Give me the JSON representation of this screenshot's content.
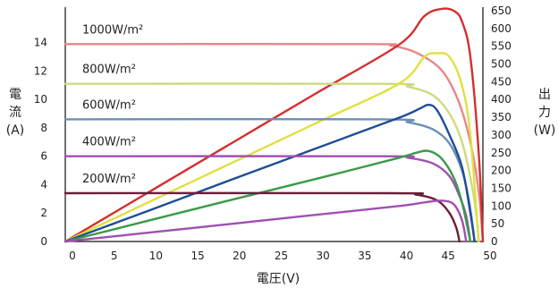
{
  "chart_data": {
    "type": "line",
    "xlabel": "電圧(V)",
    "ylabel_left": [
      "電",
      "流",
      "(A)"
    ],
    "ylabel_right": [
      "出",
      "力",
      "(W)"
    ],
    "x_ticks": [
      0,
      5,
      10,
      15,
      20,
      25,
      30,
      35,
      40,
      45,
      50
    ],
    "y_left_ticks": [
      0,
      2,
      4,
      6,
      8,
      10,
      12,
      14
    ],
    "y_right_ticks": [
      0,
      50,
      100,
      150,
      200,
      250,
      300,
      350,
      400,
      450,
      500,
      550,
      600,
      650
    ],
    "xlim": [
      0,
      50
    ],
    "ylim_left": [
      0,
      16.5
    ],
    "ylim_right": [
      0,
      660
    ],
    "grid": false,
    "series": [
      {
        "name": "1000W/m²",
        "current_color": "#e8868a",
        "power_color": "#d32f2f",
        "current": [
          [
            0,
            13.9
          ],
          [
            36,
            13.9
          ],
          [
            39,
            13.8
          ],
          [
            42,
            13.3
          ],
          [
            45,
            12.1
          ],
          [
            47,
            10.0
          ],
          [
            48.5,
            7.0
          ],
          [
            49.5,
            3.5
          ],
          [
            50,
            0
          ]
        ],
        "power": [
          [
            0,
            0
          ],
          [
            10,
            139
          ],
          [
            20,
            278
          ],
          [
            30,
            417
          ],
          [
            40,
            555
          ],
          [
            43,
            635
          ],
          [
            45,
            655
          ],
          [
            46.5,
            650
          ],
          [
            47.5,
            620
          ],
          [
            48.5,
            520
          ],
          [
            49.5,
            250
          ],
          [
            50,
            0
          ]
        ]
      },
      {
        "name": "800W/m²",
        "current_color": "#cbdc7e",
        "power_color": "#e0e040",
        "current": [
          [
            0,
            11.1
          ],
          [
            38,
            11.1
          ],
          [
            41,
            10.9
          ],
          [
            44,
            10.3
          ],
          [
            46,
            9.0
          ],
          [
            47.5,
            7.0
          ],
          [
            48.5,
            4.5
          ],
          [
            49.2,
            2.0
          ],
          [
            49.5,
            0
          ]
        ],
        "power": [
          [
            0,
            0
          ],
          [
            10,
            111
          ],
          [
            20,
            222
          ],
          [
            30,
            333
          ],
          [
            40,
            445
          ],
          [
            43,
            520
          ],
          [
            44.5,
            530
          ],
          [
            46,
            520
          ],
          [
            47.5,
            440
          ],
          [
            48.5,
            300
          ],
          [
            49.5,
            0
          ]
        ]
      },
      {
        "name": "600W/m²",
        "current_color": "#6b8fb8",
        "power_color": "#1f4e96",
        "current": [
          [
            0,
            8.6
          ],
          [
            38,
            8.6
          ],
          [
            41,
            8.4
          ],
          [
            44,
            7.9
          ],
          [
            46,
            6.9
          ],
          [
            47.5,
            5.0
          ],
          [
            48.3,
            3.0
          ],
          [
            48.8,
            1.0
          ],
          [
            49,
            0
          ]
        ],
        "power": [
          [
            0,
            0
          ],
          [
            10,
            87
          ],
          [
            20,
            175
          ],
          [
            30,
            262
          ],
          [
            40,
            349
          ],
          [
            42.5,
            375
          ],
          [
            43.5,
            385
          ],
          [
            44.5,
            370
          ],
          [
            46,
            300
          ],
          [
            47.5,
            210
          ],
          [
            48.5,
            80
          ],
          [
            49,
            0
          ]
        ]
      },
      {
        "name": "400W/m²",
        "current_color": "#a050b0",
        "power_color": "#3a9a48",
        "current": [
          [
            0,
            6.0
          ],
          [
            38,
            6.0
          ],
          [
            41,
            5.9
          ],
          [
            44,
            5.5
          ],
          [
            46,
            4.6
          ],
          [
            47.2,
            3.2
          ],
          [
            48,
            1.8
          ],
          [
            48.5,
            0
          ]
        ],
        "power": [
          [
            0,
            0
          ],
          [
            10,
            59
          ],
          [
            20,
            118
          ],
          [
            30,
            176
          ],
          [
            40,
            236
          ],
          [
            42,
            250
          ],
          [
            43.5,
            255
          ],
          [
            45,
            235
          ],
          [
            46.5,
            180
          ],
          [
            47.5,
            110
          ],
          [
            48.5,
            0
          ]
        ]
      },
      {
        "name": "200W/m²",
        "current_color": "#6a1e3a",
        "power_color": "#a050b0",
        "current": [
          [
            0,
            3.4
          ],
          [
            39,
            3.4
          ],
          [
            42,
            3.3
          ],
          [
            44.5,
            2.9
          ],
          [
            46,
            2.0
          ],
          [
            46.8,
            1.0
          ],
          [
            47.2,
            0
          ]
        ],
        "power": [
          [
            0,
            0
          ],
          [
            10,
            25
          ],
          [
            20,
            50
          ],
          [
            30,
            75
          ],
          [
            40,
            100
          ],
          [
            43,
            110
          ],
          [
            45,
            115
          ],
          [
            46.5,
            105
          ],
          [
            47.5,
            60
          ],
          [
            48,
            0
          ]
        ]
      }
    ]
  }
}
